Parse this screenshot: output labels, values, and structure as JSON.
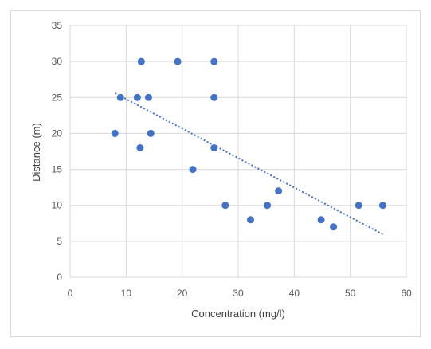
{
  "chart_data": {
    "type": "scatter",
    "xlabel": "Concentration (mg/l)",
    "ylabel": "Distance (m)",
    "xlim": [
      0,
      60
    ],
    "ylim": [
      0,
      35
    ],
    "x_ticks": [
      0,
      10,
      20,
      30,
      40,
      50,
      60
    ],
    "y_ticks": [
      0,
      5,
      10,
      15,
      20,
      25,
      30,
      35
    ],
    "grid": true,
    "legend": "none",
    "marker_color": "#4472c4",
    "trendline": {
      "type": "linear",
      "style": "dotted",
      "color": "#4472c4",
      "from": [
        8,
        25.6
      ],
      "to": [
        56,
        5.9
      ]
    },
    "series": [
      {
        "points": [
          [
            8,
            20
          ],
          [
            9,
            25
          ],
          [
            12,
            25
          ],
          [
            12.5,
            18
          ],
          [
            12.7,
            30
          ],
          [
            14,
            25
          ],
          [
            14.4,
            20
          ],
          [
            19.2,
            30
          ],
          [
            21.9,
            15
          ],
          [
            25.7,
            30
          ],
          [
            25.7,
            25
          ],
          [
            25.7,
            18
          ],
          [
            27.7,
            10
          ],
          [
            32.2,
            8
          ],
          [
            35.2,
            10
          ],
          [
            37.2,
            12
          ],
          [
            44.8,
            8
          ],
          [
            47,
            7
          ],
          [
            51.5,
            10
          ],
          [
            55.8,
            10
          ]
        ]
      }
    ]
  }
}
